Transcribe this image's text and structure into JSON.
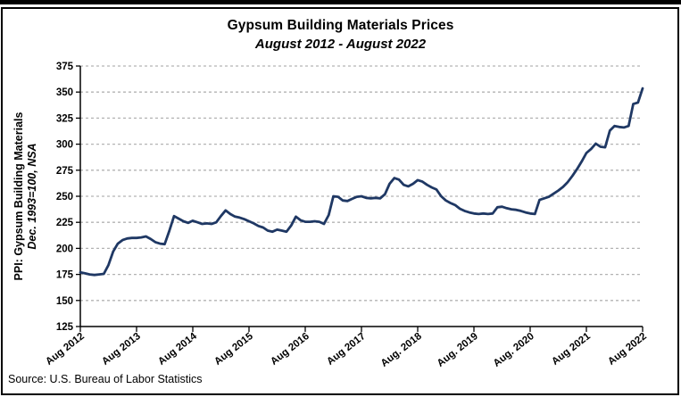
{
  "chart": {
    "title": "Gypsum Building Materials Prices",
    "subtitle": "August 2012 - August 2022",
    "y_axis_title_line1": "PPI: Gypsum Building Materials",
    "y_axis_title_line2": "Dec. 1993=100, NSA",
    "source": "Source: U.S. Bureau of Labor Statistics",
    "line_color": "#1f3864",
    "gridline_color": "#b3b3b3",
    "axis_color": "#000000"
  },
  "chart_data": {
    "type": "line",
    "title": "Gypsum Building Materials Prices",
    "subtitle": "August 2012 - August 2022",
    "ylabel": "PPI: Gypsum Building Materials, Dec. 1993=100, NSA",
    "xlabel": "",
    "ylim": [
      125,
      375
    ],
    "yticks": [
      375,
      350,
      325,
      300,
      275,
      250,
      225,
      200,
      175,
      150,
      125
    ],
    "grid": "horizontal-dashed",
    "legend": "none",
    "x_tick_labels": [
      "Aug 2012",
      "Aug 2013",
      "Aug 2014",
      "Aug 2015",
      "Aug 2016",
      "Aug 2017",
      "Aug. 2018",
      "Aug. 2019",
      "Aug. 2020",
      "Aug 2021",
      "Aug 2022"
    ],
    "frequency": "monthly",
    "x_start": "Aug 2012",
    "x_end": "Aug 2022",
    "series": [
      {
        "name": "PPI: Gypsum Building Materials (Dec. 1993=100, NSA)",
        "values": [
          177,
          176,
          175,
          174.5,
          175,
          175.5,
          184,
          197,
          204.5,
          208,
          209.5,
          210,
          210,
          210.5,
          211.5,
          209,
          206,
          204.5,
          204,
          217,
          231,
          228.5,
          226,
          224.5,
          226.5,
          225,
          223.5,
          224,
          223.5,
          225,
          231,
          236.5,
          233,
          230.5,
          229.5,
          228,
          226,
          224,
          221.5,
          220,
          217,
          216,
          218,
          217,
          216,
          222,
          230.5,
          227,
          225.5,
          225.5,
          226,
          225.5,
          223.5,
          232,
          250,
          249.5,
          246,
          245.5,
          247.5,
          249.5,
          250,
          248.5,
          248,
          248.5,
          248,
          252,
          262,
          267.5,
          266,
          261,
          259.5,
          262,
          265.5,
          264,
          261,
          258.5,
          256.5,
          250,
          246,
          243.5,
          241.5,
          238,
          236,
          234.5,
          233.5,
          233,
          233.5,
          233,
          233.5,
          239.5,
          240,
          238.5,
          237.5,
          237,
          236,
          234.5,
          233.5,
          233,
          246.5,
          248,
          249.5,
          252.5,
          255.5,
          259,
          263.5,
          269.5,
          276,
          283.5,
          291.5,
          295.5,
          300.5,
          297.5,
          297,
          313,
          317.5,
          316.5,
          316,
          317.5,
          338.5,
          340,
          353.5
        ]
      }
    ]
  }
}
